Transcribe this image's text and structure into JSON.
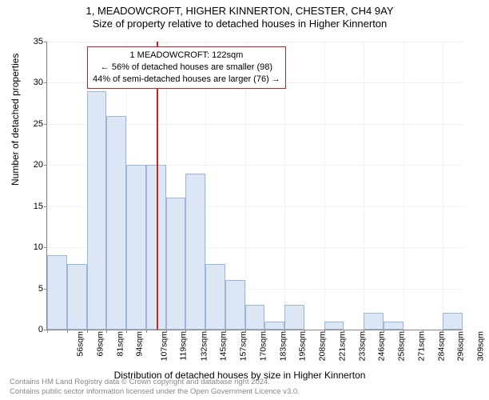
{
  "title_line1": "1, MEADOWCROFT, HIGHER KINNERTON, CHESTER, CH4 9AY",
  "title_line2": "Size of property relative to detached houses in Higher Kinnerton",
  "yaxis_label": "Number of detached properties",
  "xaxis_label": "Distribution of detached houses by size in Higher Kinnerton",
  "footer_line1": "Contains HM Land Registry data © Crown copyright and database right 2024.",
  "footer_line2": "Contains public sector information licensed under the Open Government Licence v3.0.",
  "chart": {
    "type": "histogram",
    "background_color": "#ffffff",
    "grid_color": "#eef2f7",
    "axis_color": "#888888",
    "bar_fill": "#dce6f4",
    "bar_stroke": "#9db5d6",
    "marker_color": "#d02020",
    "ylim": [
      0,
      35
    ],
    "ytick_step": 5,
    "x_start": 50,
    "x_step_label": 13,
    "x_labels": [
      "56sqm",
      "69sqm",
      "81sqm",
      "94sqm",
      "107sqm",
      "119sqm",
      "132sqm",
      "145sqm",
      "157sqm",
      "170sqm",
      "183sqm",
      "195sqm",
      "208sqm",
      "221sqm",
      "233sqm",
      "246sqm",
      "258sqm",
      "271sqm",
      "284sqm",
      "296sqm",
      "309sqm"
    ],
    "values": [
      9,
      8,
      29,
      26,
      20,
      20,
      16,
      19,
      8,
      6,
      3,
      1,
      3,
      0,
      1,
      0,
      2,
      1,
      0,
      0,
      2
    ],
    "marker_value": 122,
    "callout": {
      "line1": "1 MEADOWCROFT: 122sqm",
      "line2": "← 56% of detached houses are smaller (98)",
      "line3": "44% of semi-detached houses are larger (76) →"
    }
  }
}
